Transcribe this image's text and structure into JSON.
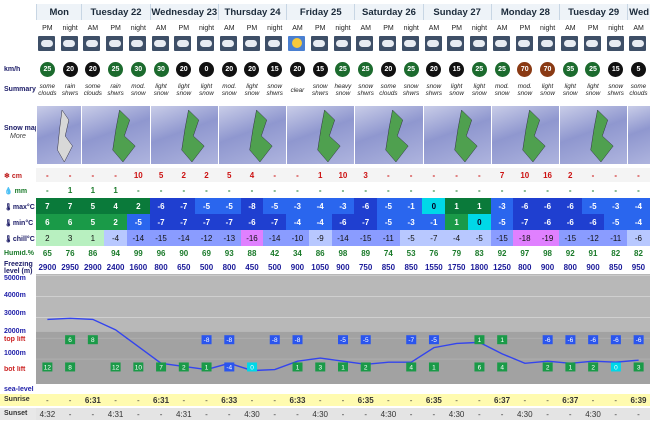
{
  "days": [
    {
      "name": "Mon",
      "slots": [
        "PM",
        "night"
      ]
    },
    {
      "name": "Tuesday 22",
      "slots": [
        "AM",
        "PM",
        "night"
      ]
    },
    {
      "name": "Wednesday 23",
      "slots": [
        "AM",
        "PM",
        "night"
      ]
    },
    {
      "name": "Thursday 24",
      "slots": [
        "AM",
        "PM",
        "night"
      ]
    },
    {
      "name": "Friday 25",
      "slots": [
        "AM",
        "PM",
        "night"
      ]
    },
    {
      "name": "Saturday 26",
      "slots": [
        "AM",
        "PM",
        "night"
      ]
    },
    {
      "name": "Sunday 27",
      "slots": [
        "AM",
        "PM",
        "night"
      ]
    },
    {
      "name": "Monday 28",
      "slots": [
        "AM",
        "PM",
        "night"
      ]
    },
    {
      "name": "Tuesday 29",
      "slots": [
        "AM",
        "PM",
        "night"
      ]
    },
    {
      "name": "Wed",
      "slots": [
        "AM"
      ]
    }
  ],
  "labels": {
    "wind": "km/h",
    "summary": "Summary",
    "snowmap": "Snow map",
    "snowmap_more": "More",
    "snow_cm": "cm",
    "rain_mm": "mm",
    "max": "max°C",
    "min": "min°C",
    "chill": "chill°C",
    "humid": "Humid.%",
    "freezing": "Freezing level (m)",
    "elev_5000": "5000m",
    "elev_4000": "4000m",
    "elev_3000": "3000m",
    "elev_2000": "2000m",
    "elev_top": "top lift",
    "elev_1000": "1000m",
    "elev_bot": "bot lift",
    "elev_sea": "sea-level",
    "sunrise": "Sunrise",
    "sunset": "Sunset"
  },
  "wind": [
    "25",
    "20",
    "20",
    "25",
    "30",
    "30",
    "20",
    "0",
    "20",
    "20",
    "15",
    "20",
    "15",
    "25",
    "25",
    "20",
    "25",
    "20",
    "15",
    "25",
    "25",
    "70",
    "70",
    "35",
    "25",
    "15",
    "5"
  ],
  "summary": [
    [
      "some",
      "clouds"
    ],
    [
      "rain",
      "shwrs"
    ],
    [
      "some",
      "clouds"
    ],
    [
      "rain",
      "shwrs"
    ],
    [
      "mod.",
      "snow"
    ],
    [
      "light",
      "snow"
    ],
    [
      "light",
      "snow"
    ],
    [
      "light",
      "snow"
    ],
    [
      "mod.",
      "snow"
    ],
    [
      "light",
      "snow"
    ],
    [
      "snow",
      "shwrs"
    ],
    [
      "clear",
      ""
    ],
    [
      "snow",
      "shwrs"
    ],
    [
      "heavy",
      "snow"
    ],
    [
      "snow",
      "shwrs"
    ],
    [
      "some",
      "clouds"
    ],
    [
      "snow",
      "shwrs"
    ],
    [
      "snow",
      "shwrs"
    ],
    [
      "light",
      "snow"
    ],
    [
      "light",
      "snow"
    ],
    [
      "mod.",
      "snow"
    ],
    [
      "mod.",
      "snow"
    ],
    [
      "light",
      "snow"
    ],
    [
      "light",
      "snow"
    ],
    [
      "light",
      "snow"
    ],
    [
      "snow",
      "shwrs"
    ],
    [
      "some",
      "clouds"
    ]
  ],
  "snow": [
    "-",
    "-",
    "-",
    "-",
    "10",
    "5",
    "2",
    "2",
    "5",
    "4",
    "-",
    "-",
    "1",
    "10",
    "3",
    "-",
    "-",
    "-",
    "-",
    "-",
    "7",
    "10",
    "16",
    "2",
    "-",
    "-",
    "-"
  ],
  "rain": [
    "-",
    "1",
    "1",
    "1",
    "-",
    "-",
    "-",
    "-",
    "-",
    "-",
    "-",
    "-",
    "-",
    "-",
    "-",
    "-",
    "-",
    "-",
    "-",
    "-",
    "-",
    "-",
    "-",
    "-",
    "-",
    "-",
    "-"
  ],
  "max": [
    "7",
    "7",
    "5",
    "4",
    "2",
    "-6",
    "-7",
    "-5",
    "-5",
    "-8",
    "-5",
    "-3",
    "-4",
    "-3",
    "-6",
    "-5",
    "-1",
    "0",
    "1",
    "1",
    "-3",
    "-6",
    "-6",
    "-6",
    "-5",
    "-3",
    "-4"
  ],
  "min": [
    "6",
    "6",
    "5",
    "2",
    "-5",
    "-7",
    "-7",
    "-7",
    "-7",
    "-6",
    "-7",
    "-4",
    "-4",
    "-6",
    "-7",
    "-5",
    "-3",
    "-1",
    "1",
    "0",
    "-5",
    "-7",
    "-6",
    "-6",
    "-6",
    "-5",
    "-4"
  ],
  "chill": [
    "2",
    "3",
    "1",
    "-4",
    "-14",
    "-15",
    "-14",
    "-12",
    "-13",
    "-16",
    "-14",
    "-10",
    "-9",
    "-14",
    "-15",
    "-11",
    "-5",
    "-7",
    "-4",
    "-5",
    "-15",
    "-18",
    "-19",
    "-15",
    "-12",
    "-11",
    "-6"
  ],
  "humid": [
    "65",
    "76",
    "86",
    "94",
    "99",
    "96",
    "90",
    "69",
    "93",
    "88",
    "42",
    "34",
    "86",
    "98",
    "89",
    "74",
    "53",
    "76",
    "79",
    "83",
    "92",
    "97",
    "98",
    "92",
    "91",
    "82",
    "82"
  ],
  "freezing": [
    "2900",
    "2950",
    "2900",
    "2400",
    "1600",
    "800",
    "650",
    "500",
    "800",
    "450",
    "500",
    "900",
    "1050",
    "900",
    "750",
    "850",
    "850",
    "1550",
    "1750",
    "1800",
    "1250",
    "800",
    "900",
    "800",
    "900",
    "850",
    "950"
  ],
  "chart_top": [
    "",
    "6",
    "8",
    "",
    "",
    "",
    "",
    "-8",
    "-8",
    "",
    "-8",
    "-8",
    "",
    "-5",
    "-5",
    "",
    "-7",
    "-5",
    "",
    "1",
    "1",
    "",
    "-6",
    "-6",
    "-6",
    "-6",
    "-6"
  ],
  "chart_bot": [
    "12",
    "8",
    "",
    "12",
    "10",
    "7",
    "2",
    "1",
    "-4",
    "0",
    "",
    "1",
    "3",
    "1",
    "2",
    "",
    "4",
    "1",
    "",
    "6",
    "4",
    "",
    "2",
    "1",
    "2",
    "0",
    "3"
  ],
  "sunrise": [
    "-",
    "-",
    "6:31",
    "-",
    "-",
    "6:31",
    "-",
    "-",
    "6:33",
    "-",
    "-",
    "6:33",
    "-",
    "-",
    "6:35",
    "-",
    "-",
    "6:35",
    "-",
    "-",
    "6:37",
    "-",
    "-",
    "6:37",
    "-",
    "-",
    "6:39"
  ],
  "sunset": [
    "4:32",
    "-",
    "-",
    "4:31",
    "-",
    "-",
    "4:31",
    "-",
    "-",
    "4:30",
    "-",
    "-",
    "4:30",
    "-",
    "-",
    "4:30",
    "-",
    "-",
    "4:30",
    "-",
    "-",
    "4:30",
    "-",
    "-",
    "4:30",
    "-",
    "-"
  ],
  "colors": {
    "max_pos": "#0a7a3a",
    "max_neg": "#1f4fd8",
    "min_pos": "#1a9a48",
    "chill_neg": "#6f88ff",
    "snow_red": "#cc1111",
    "sun": "#fffbb0"
  }
}
